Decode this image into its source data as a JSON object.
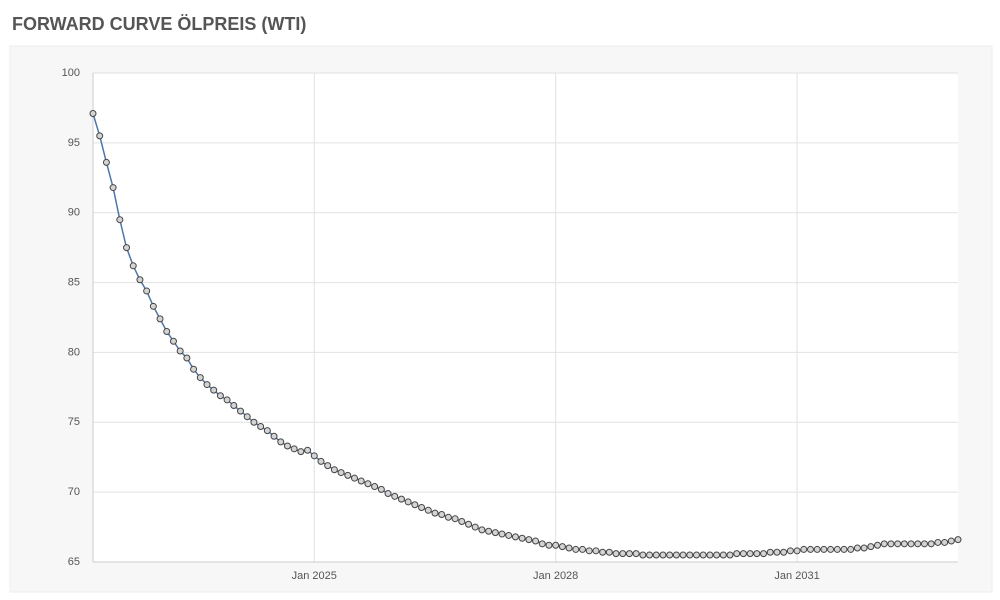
{
  "chart_data": {
    "type": "line",
    "title": "FORWARD CURVE ÖLPREIS (WTI)",
    "color": "#4f76a8",
    "grid": true,
    "x": [
      "2022-04",
      "2022-05",
      "2022-06",
      "2022-07",
      "2022-08",
      "2022-09",
      "2022-10",
      "2022-11",
      "2022-12",
      "2023-01",
      "2023-02",
      "2023-03",
      "2023-04",
      "2023-05",
      "2023-06",
      "2023-07",
      "2023-08",
      "2023-09",
      "2023-10",
      "2023-11",
      "2023-12",
      "2024-01",
      "2024-02",
      "2024-03",
      "2024-04",
      "2024-05",
      "2024-06",
      "2024-07",
      "2024-08",
      "2024-09",
      "2024-10",
      "2024-11",
      "2024-12",
      "2025-01",
      "2025-02",
      "2025-03",
      "2025-04",
      "2025-05",
      "2025-06",
      "2025-07",
      "2025-08",
      "2025-09",
      "2025-10",
      "2025-11",
      "2025-12",
      "2026-01",
      "2026-02",
      "2026-03",
      "2026-04",
      "2026-05",
      "2026-06",
      "2026-07",
      "2026-08",
      "2026-09",
      "2026-10",
      "2026-11",
      "2026-12",
      "2027-01",
      "2027-02",
      "2027-03",
      "2027-04",
      "2027-05",
      "2027-06",
      "2027-07",
      "2027-08",
      "2027-09",
      "2027-10",
      "2027-11",
      "2027-12",
      "2028-01",
      "2028-02",
      "2028-03",
      "2028-04",
      "2028-05",
      "2028-06",
      "2028-07",
      "2028-08",
      "2028-09",
      "2028-10",
      "2028-11",
      "2028-12",
      "2029-01",
      "2029-02",
      "2029-03",
      "2029-04",
      "2029-05",
      "2029-06",
      "2029-07",
      "2029-08",
      "2029-09",
      "2029-10",
      "2029-11",
      "2029-12",
      "2030-01",
      "2030-02",
      "2030-03",
      "2030-04",
      "2030-05",
      "2030-06",
      "2030-07",
      "2030-08",
      "2030-09",
      "2030-10",
      "2030-11",
      "2030-12",
      "2031-01",
      "2031-02",
      "2031-03",
      "2031-04",
      "2031-05",
      "2031-06",
      "2031-07",
      "2031-08",
      "2031-09",
      "2031-10",
      "2031-11",
      "2031-12",
      "2032-01",
      "2032-02",
      "2032-03",
      "2032-04",
      "2032-05",
      "2032-06",
      "2032-07",
      "2032-08",
      "2032-09",
      "2032-10",
      "2032-11",
      "2032-12",
      "2033-01"
    ],
    "values": [
      97.1,
      95.5,
      93.6,
      91.8,
      89.5,
      87.5,
      86.2,
      85.2,
      84.4,
      83.3,
      82.4,
      81.5,
      80.8,
      80.1,
      79.6,
      78.8,
      78.2,
      77.7,
      77.3,
      76.9,
      76.6,
      76.2,
      75.8,
      75.4,
      75.0,
      74.7,
      74.4,
      74.0,
      73.6,
      73.3,
      73.1,
      72.9,
      73.0,
      72.6,
      72.2,
      71.9,
      71.6,
      71.4,
      71.2,
      71.0,
      70.8,
      70.6,
      70.4,
      70.2,
      69.9,
      69.7,
      69.5,
      69.3,
      69.1,
      68.9,
      68.7,
      68.5,
      68.4,
      68.2,
      68.1,
      67.9,
      67.7,
      67.5,
      67.3,
      67.2,
      67.1,
      67.0,
      66.9,
      66.8,
      66.7,
      66.6,
      66.5,
      66.3,
      66.2,
      66.2,
      66.1,
      66.0,
      65.9,
      65.9,
      65.8,
      65.8,
      65.7,
      65.7,
      65.6,
      65.6,
      65.6,
      65.6,
      65.5,
      65.5,
      65.5,
      65.5,
      65.5,
      65.5,
      65.5,
      65.5,
      65.5,
      65.5,
      65.5,
      65.5,
      65.5,
      65.5,
      65.6,
      65.6,
      65.6,
      65.6,
      65.6,
      65.7,
      65.7,
      65.7,
      65.8,
      65.8,
      65.9,
      65.9,
      65.9,
      65.9,
      65.9,
      65.9,
      65.9,
      65.9,
      66.0,
      66.0,
      66.1,
      66.2,
      66.3,
      66.3,
      66.3,
      66.3,
      66.3,
      66.3,
      66.3,
      66.3,
      66.4,
      66.4,
      66.5,
      66.6
    ],
    "xlim": [
      "2022-04",
      "2033-01"
    ],
    "xticks": [
      {
        "value": "2025-01",
        "label": "Jan 2025"
      },
      {
        "value": "2028-01",
        "label": "Jan 2028"
      },
      {
        "value": "2031-01",
        "label": "Jan 2031"
      }
    ],
    "ylim": [
      65,
      100
    ],
    "yticks": [
      65,
      70,
      75,
      80,
      85,
      90,
      95,
      100
    ]
  }
}
